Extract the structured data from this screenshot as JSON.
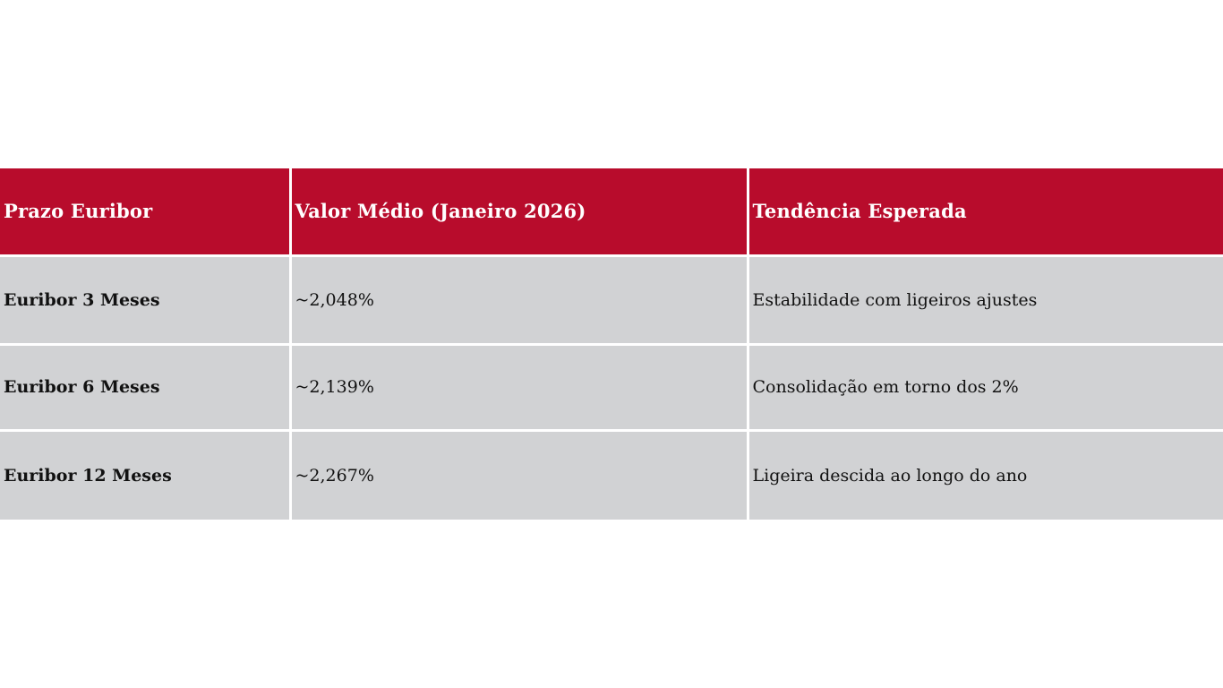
{
  "table": {
    "headers": [
      "Prazo Euribor",
      "Valor Médio (Janeiro 2026)",
      "Tendência Esperada"
    ],
    "rows": [
      {
        "term": "Euribor 3 Meses",
        "value": "~2,048%",
        "trend": "Estabilidade com ligeiros ajustes"
      },
      {
        "term": "Euribor 6 Meses",
        "value": "~2,139%",
        "trend": "Consolidação em torno dos 2%"
      },
      {
        "term": "Euribor 12 Meses",
        "value": "~2,267%",
        "trend": "Ligeira descida ao longo do ano"
      }
    ]
  },
  "colors": {
    "header_bg": "#b80c2c",
    "header_text": "#ffffff",
    "row_bg": "#d1d2d4",
    "row_text": "#111111",
    "separator": "#ffffff"
  }
}
